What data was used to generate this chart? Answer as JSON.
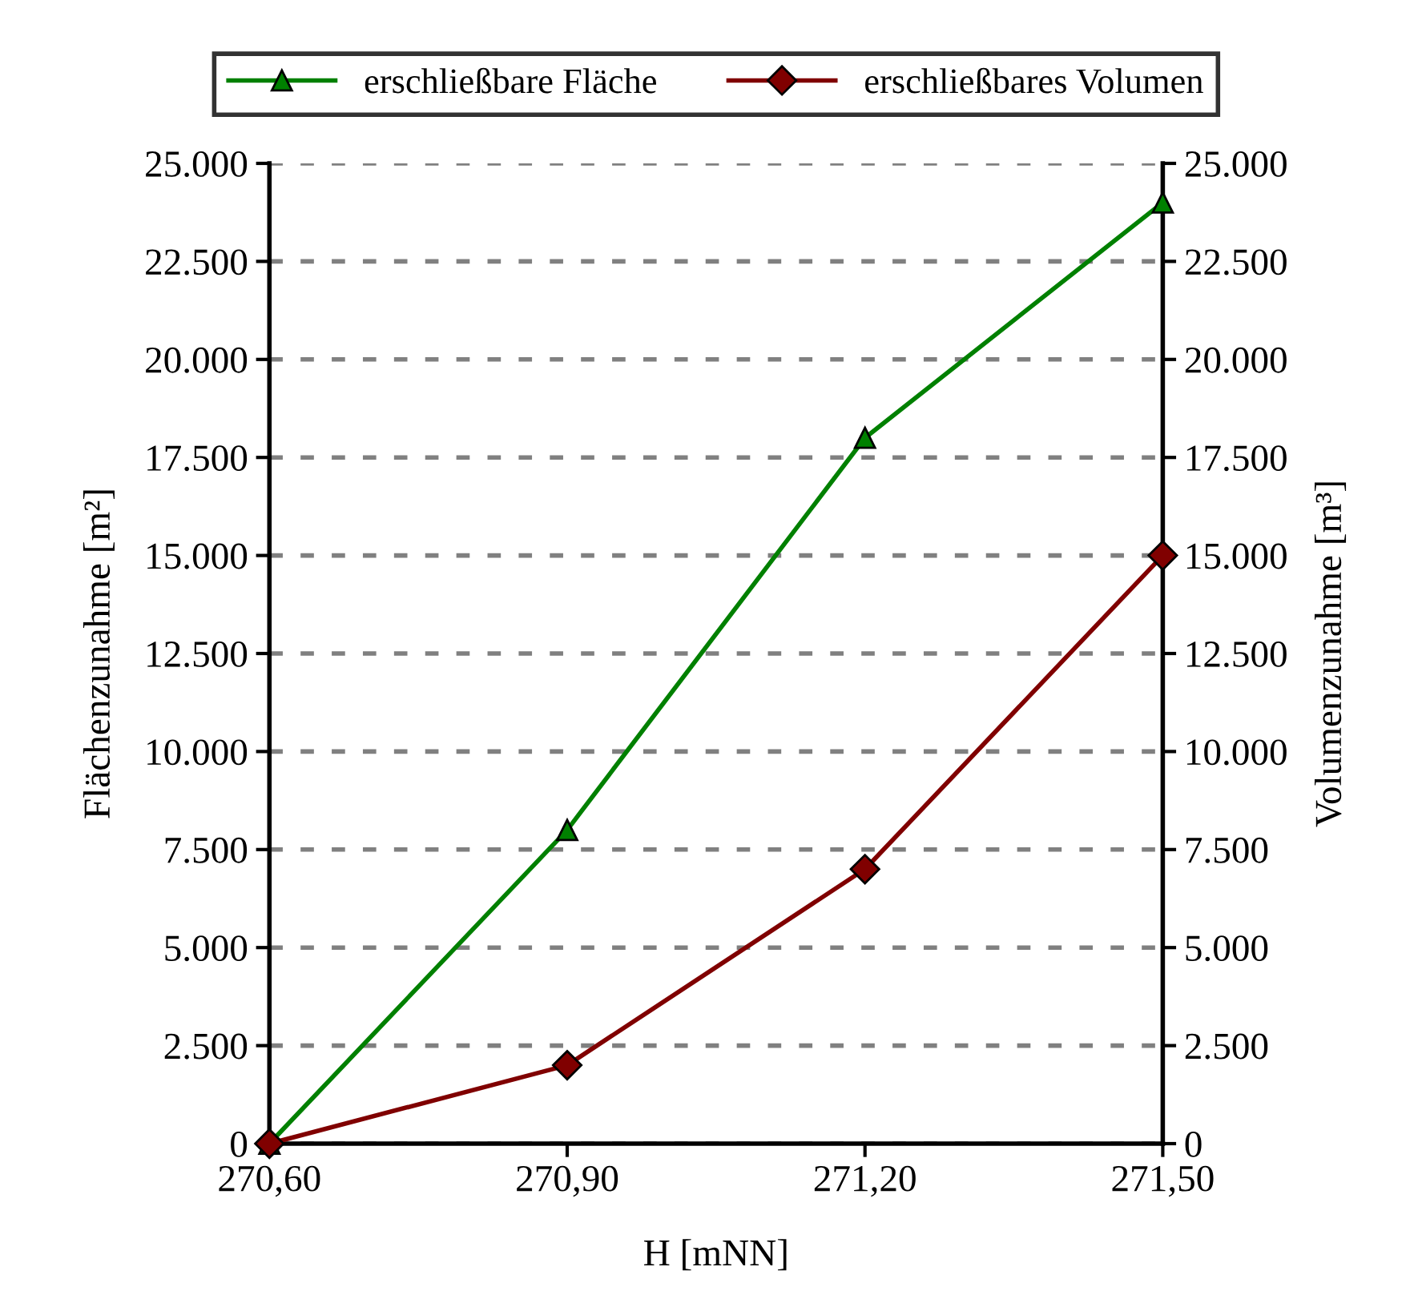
{
  "chart_data": {
    "type": "line",
    "xlabel": "H [mNN]",
    "ylabel": "Flächenzunahme [m²]",
    "y2label": "Volumenzunahme [m³]",
    "x": [
      270.6,
      270.9,
      271.2,
      271.5
    ],
    "series": [
      {
        "name": "erschließbare Fläche",
        "color": "#008000",
        "marker": "triangle",
        "values": [
          0,
          8000,
          18000,
          24000
        ]
      },
      {
        "name": "erschließbares Volumen",
        "color": "#800000",
        "marker": "diamond",
        "axis": "y2",
        "values": [
          0,
          2000,
          7000,
          15000
        ]
      }
    ],
    "xlim": [
      270.6,
      271.5
    ],
    "xticks": [
      {
        "value": 270.6,
        "label": "270,60"
      },
      {
        "value": 270.9,
        "label": "270,90"
      },
      {
        "value": 271.2,
        "label": "271,20"
      },
      {
        "value": 271.5,
        "label": "271,50"
      }
    ],
    "ylim": [
      0,
      25000
    ],
    "yticks": [
      0,
      {
        "value": 2500,
        "label": "2.500"
      },
      {
        "value": 5000,
        "label": "5.000"
      },
      {
        "value": 7500,
        "label": "7.500"
      },
      {
        "value": 10000,
        "label": "10.000"
      },
      {
        "value": 12500,
        "label": "12.500"
      },
      {
        "value": 15000,
        "label": "15.000"
      },
      {
        "value": 17500,
        "label": "17.500"
      },
      {
        "value": 20000,
        "label": "20.000"
      },
      {
        "value": 22500,
        "label": "22.500"
      },
      {
        "value": 25000,
        "label": "25.000"
      }
    ],
    "y2lim": [
      0,
      25000
    ],
    "y2ticks": [
      0,
      {
        "value": 2500,
        "label": "2.500"
      },
      {
        "value": 5000,
        "label": "5.000"
      },
      {
        "value": 7500,
        "label": "7.500"
      },
      {
        "value": 10000,
        "label": "10.000"
      },
      {
        "value": 12500,
        "label": "12.500"
      },
      {
        "value": 15000,
        "label": "15.000"
      },
      {
        "value": 17500,
        "label": "17.500"
      },
      {
        "value": 20000,
        "label": "20.000"
      },
      {
        "value": 22500,
        "label": "22.500"
      },
      {
        "value": 25000,
        "label": "25.000"
      }
    ],
    "grid": "y",
    "legend": "top",
    "line_style": "solid"
  }
}
